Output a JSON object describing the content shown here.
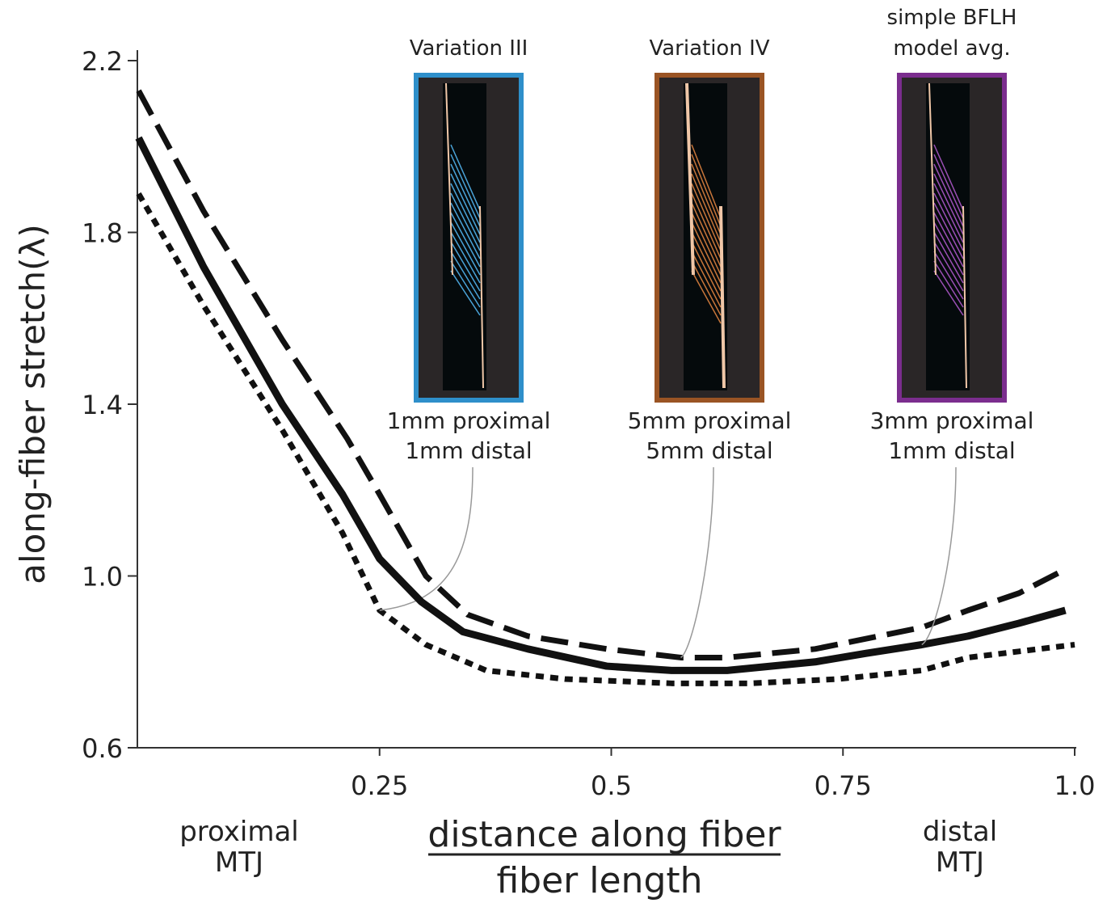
{
  "chart_data": {
    "type": "line",
    "ylabel": "along-fiber stretch(λ)",
    "xlabel": [
      "distance along fiber",
      "fiber length"
    ],
    "x_end_labels": [
      [
        "proximal",
        "MTJ"
      ],
      [
        "distal",
        "MTJ"
      ]
    ],
    "xlim": [
      -0.01,
      1.0
    ],
    "xticks": [
      0.25,
      0.5,
      0.75,
      {
        "value": 1,
        "label": "1.0"
      }
    ],
    "ylim": [
      0.6,
      2.2
    ],
    "yticks": [
      0.6,
      {
        "value": 1,
        "label": "1.0"
      },
      1.4,
      1.8,
      2.2
    ],
    "series": [
      {
        "name": "Variation III",
        "params": [
          "1mm proximal",
          "1mm distal"
        ],
        "color": "#111111",
        "dash": "short",
        "frame_color": "#2e8fca",
        "fiber_color": "#4aa3d8",
        "x": [
          -0.01,
          0.06,
          0.145,
          0.21,
          0.25,
          0.3,
          0.365,
          0.45,
          0.565,
          0.65,
          0.745,
          0.835,
          0.885,
          1.0
        ],
        "values": [
          1.89,
          1.63,
          1.34,
          1.1,
          0.92,
          0.84,
          0.78,
          0.76,
          0.75,
          0.75,
          0.76,
          0.78,
          0.81,
          0.84
        ]
      },
      {
        "name": "Variation IV",
        "params": [
          "5mm proximal",
          "5mm distal"
        ],
        "color": "#111111",
        "dash": "long",
        "frame_color": "#9a5424",
        "fiber_color": "#c8763a",
        "x": [
          -0.01,
          0.06,
          0.145,
          0.215,
          0.25,
          0.3,
          0.345,
          0.41,
          0.495,
          0.575,
          0.625,
          0.72,
          0.835,
          0.885,
          0.94,
          0.985
        ],
        "values": [
          2.13,
          1.85,
          1.55,
          1.32,
          1.19,
          1.0,
          0.91,
          0.86,
          0.83,
          0.81,
          0.81,
          0.83,
          0.88,
          0.92,
          0.96,
          1.01
        ]
      },
      {
        "name": [
          "simple BFLH",
          "model avg."
        ],
        "params": [
          "3mm proximal",
          "1mm distal"
        ],
        "color": "#111111",
        "dash": "solid",
        "frame_color": "#7b2d8e",
        "fiber_color": "#9b4fb5",
        "x": [
          -0.01,
          0.06,
          0.145,
          0.21,
          0.25,
          0.295,
          0.34,
          0.41,
          0.495,
          0.565,
          0.625,
          0.72,
          0.775,
          0.835,
          0.885,
          0.94,
          0.99
        ],
        "values": [
          2.02,
          1.72,
          1.4,
          1.19,
          1.04,
          0.94,
          0.87,
          0.83,
          0.79,
          0.78,
          0.78,
          0.8,
          0.82,
          0.84,
          0.86,
          0.89,
          0.92
        ]
      }
    ]
  }
}
